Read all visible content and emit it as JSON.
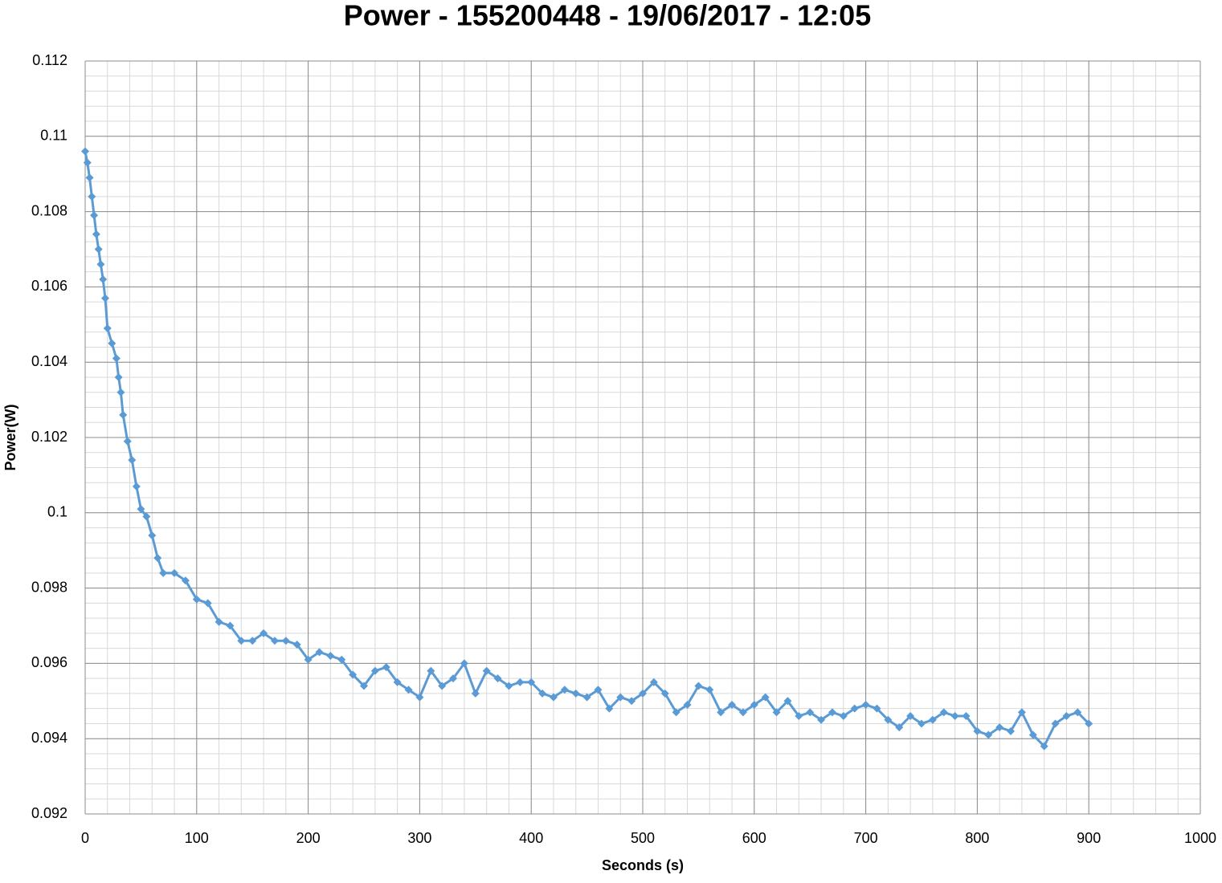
{
  "chart_data": {
    "type": "line",
    "title": "Power - 155200448 - 19/06/2017 - 12:05",
    "x_label": "Seconds (s)",
    "y_label": "Power(W)",
    "x": [
      0,
      2,
      4,
      6,
      8,
      10,
      12,
      14,
      16,
      18,
      20,
      24,
      28,
      30,
      32,
      34,
      38,
      42,
      46,
      50,
      55,
      60,
      65,
      70,
      80,
      90,
      100,
      110,
      120,
      130,
      140,
      150,
      160,
      170,
      180,
      190,
      200,
      210,
      220,
      230,
      240,
      250,
      260,
      270,
      280,
      290,
      300,
      310,
      320,
      330,
      340,
      350,
      360,
      370,
      380,
      390,
      400,
      410,
      420,
      430,
      440,
      450,
      460,
      470,
      480,
      490,
      500,
      510,
      520,
      530,
      540,
      550,
      560,
      570,
      580,
      590,
      600,
      610,
      620,
      630,
      640,
      650,
      660,
      670,
      680,
      690,
      700,
      710,
      720,
      730,
      740,
      750,
      760,
      770,
      780,
      790,
      800,
      810,
      820,
      830,
      840,
      850,
      860,
      870,
      880,
      890,
      900
    ],
    "series": [
      {
        "name": "Power",
        "color": "#5b9bd5",
        "values": [
          0.1096,
          0.1093,
          0.1089,
          0.1084,
          0.1079,
          0.1074,
          0.107,
          0.1066,
          0.1062,
          0.1057,
          0.1049,
          0.1045,
          0.1041,
          0.1036,
          0.1032,
          0.1026,
          0.1019,
          0.1014,
          0.1007,
          0.1001,
          0.0999,
          0.0994,
          0.0988,
          0.0984,
          0.0984,
          0.0982,
          0.0977,
          0.0976,
          0.0971,
          0.097,
          0.0966,
          0.0966,
          0.0968,
          0.0966,
          0.0966,
          0.0965,
          0.0961,
          0.0963,
          0.0962,
          0.0961,
          0.0957,
          0.0954,
          0.0958,
          0.0959,
          0.0955,
          0.0953,
          0.0951,
          0.0958,
          0.0954,
          0.0956,
          0.096,
          0.0952,
          0.0958,
          0.0956,
          0.0954,
          0.0955,
          0.0955,
          0.0952,
          0.0951,
          0.0953,
          0.0952,
          0.0951,
          0.0953,
          0.0948,
          0.0951,
          0.095,
          0.0952,
          0.0955,
          0.0952,
          0.0947,
          0.0949,
          0.0954,
          0.0953,
          0.0947,
          0.0949,
          0.0947,
          0.0949,
          0.0951,
          0.0947,
          0.095,
          0.0946,
          0.0947,
          0.0945,
          0.0947,
          0.0946,
          0.0948,
          0.0949,
          0.0948,
          0.0945,
          0.0943,
          0.0946,
          0.0944,
          0.0945,
          0.0947,
          0.0946,
          0.0946,
          0.0942,
          0.0941,
          0.0943,
          0.0942,
          0.0947,
          0.0941,
          0.0938,
          0.0944,
          0.0946,
          0.0947,
          0.0944
        ]
      }
    ],
    "xlim": [
      0,
      1000
    ],
    "xticks": [
      0,
      100,
      200,
      300,
      400,
      500,
      600,
      700,
      800,
      900,
      1000
    ],
    "ylim": [
      0.092,
      0.112
    ],
    "yticks": [
      0.092,
      0.094,
      0.096,
      0.098,
      0.1,
      0.102,
      0.104,
      0.106,
      0.108,
      0.11,
      0.112
    ],
    "grid": true,
    "minor_grid": {
      "x": 20,
      "y": 0.0004
    },
    "marker": "diamond"
  }
}
